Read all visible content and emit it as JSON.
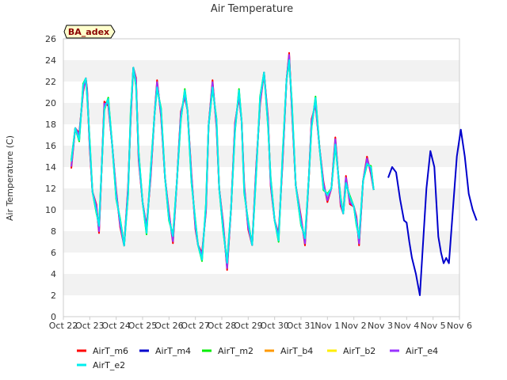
{
  "chart_data": {
    "type": "line",
    "title": "Air Temperature",
    "xlabel": "",
    "ylabel": "Air Temperature (C)",
    "badge": "BA_adex",
    "xlim": [
      0,
      15
    ],
    "ylim": [
      0,
      26
    ],
    "xticks": [
      "Oct 22",
      "Oct 23",
      "Oct 24",
      "Oct 25",
      "Oct 26",
      "Oct 27",
      "Oct 28",
      "Oct 29",
      "Oct 30",
      "Oct 31",
      "Nov 1",
      "Nov 2",
      "Nov 3",
      "Nov 4",
      "Nov 5",
      "Nov 6"
    ],
    "yticks": [
      0,
      2,
      4,
      6,
      8,
      10,
      12,
      14,
      16,
      18,
      20,
      22,
      24,
      26
    ],
    "grid": "horizontal alternating bands",
    "legend_position": "bottom",
    "colors": {
      "AirT_m6": "#ff0000",
      "AirT_m4": "#0000cc",
      "AirT_m2": "#00ee00",
      "AirT_b4": "#ff9900",
      "AirT_b2": "#ffee00",
      "AirT_e4": "#9933ff",
      "AirT_e2": "#00eeee"
    },
    "base_profile": {
      "x": [
        0.3,
        0.45,
        0.6,
        0.75,
        0.85,
        0.9,
        1.0,
        1.1,
        1.25,
        1.35,
        1.45,
        1.55,
        1.7,
        1.85,
        2.0,
        2.15,
        2.3,
        2.45,
        2.55,
        2.65,
        2.75,
        2.85,
        3.0,
        3.15,
        3.3,
        3.45,
        3.55,
        3.7,
        3.85,
        4.0,
        4.15,
        4.3,
        4.45,
        4.6,
        4.7,
        4.85,
        5.0,
        5.1,
        5.25,
        5.4,
        5.5,
        5.65,
        5.8,
        5.9,
        6.05,
        6.2,
        6.35,
        6.5,
        6.65,
        6.75,
        6.85,
        7.0,
        7.15,
        7.3,
        7.45,
        7.6,
        7.75,
        7.85,
        8.0,
        8.15,
        8.3,
        8.45,
        8.55,
        8.65,
        8.8,
        9.0,
        9.15,
        9.3,
        9.4,
        9.55,
        9.7,
        9.85,
        10.0,
        10.15,
        10.3,
        10.5,
        10.6,
        10.7,
        10.85,
        11.0,
        11.1,
        11.2,
        11.35,
        11.5,
        11.65,
        11.75
      ],
      "y": [
        14.5,
        17.5,
        17.0,
        21.5,
        22.0,
        21.0,
        16.0,
        12.0,
        10.0,
        8.0,
        14.0,
        19.5,
        20.5,
        16.0,
        11.0,
        9.0,
        6.5,
        12.0,
        19.0,
        23.0,
        22.0,
        15.0,
        11.0,
        8.0,
        13.0,
        19.0,
        21.5,
        19.5,
        13.0,
        9.0,
        7.5,
        12.5,
        19.0,
        21.0,
        19.0,
        13.0,
        8.5,
        7.0,
        5.5,
        10.0,
        18.0,
        21.5,
        18.5,
        12.0,
        8.0,
        5.0,
        10.0,
        18.0,
        21.0,
        18.0,
        12.0,
        8.5,
        7.0,
        13.5,
        20.0,
        23.0,
        18.0,
        13.0,
        9.0,
        7.0,
        15.0,
        22.0,
        24.5,
        20.0,
        12.0,
        9.0,
        7.0,
        13.5,
        18.0,
        20.0,
        16.0,
        12.0,
        11.5,
        12.0,
        16.0,
        11.0,
        9.5,
        13.0,
        11.0,
        10.0,
        9.0,
        7.0,
        13.0,
        14.5,
        13.5,
        12.0
      ]
    },
    "series": [
      {
        "name": "AirT_m6",
        "offset": 0.8
      },
      {
        "name": "AirT_m4",
        "offset": 0.0,
        "x": [
          12.3,
          12.45,
          12.6,
          12.75,
          12.9,
          13.0,
          13.1,
          13.2,
          13.35,
          13.5,
          13.6,
          13.75,
          13.9,
          14.05,
          14.2,
          14.3,
          14.4,
          14.5,
          14.6,
          14.75,
          14.9,
          15.05,
          15.2,
          15.35,
          15.5,
          15.65
        ],
        "y": [
          13.0,
          14.0,
          13.5,
          11.0,
          9.0,
          8.8,
          7.0,
          5.5,
          4.0,
          2.0,
          6.0,
          12.0,
          15.5,
          14.0,
          7.5,
          6.0,
          5.0,
          5.5,
          5.0,
          10.0,
          15.0,
          17.5,
          15.0,
          11.5,
          10.0,
          9.0
        ]
      },
      {
        "name": "AirT_m2",
        "offset": -0.5
      },
      {
        "name": "AirT_b4",
        "offset": 0.3
      },
      {
        "name": "AirT_b2",
        "offset": 0.1
      },
      {
        "name": "AirT_e4",
        "offset": 0.5
      },
      {
        "name": "AirT_e2",
        "offset": -0.3
      }
    ]
  }
}
